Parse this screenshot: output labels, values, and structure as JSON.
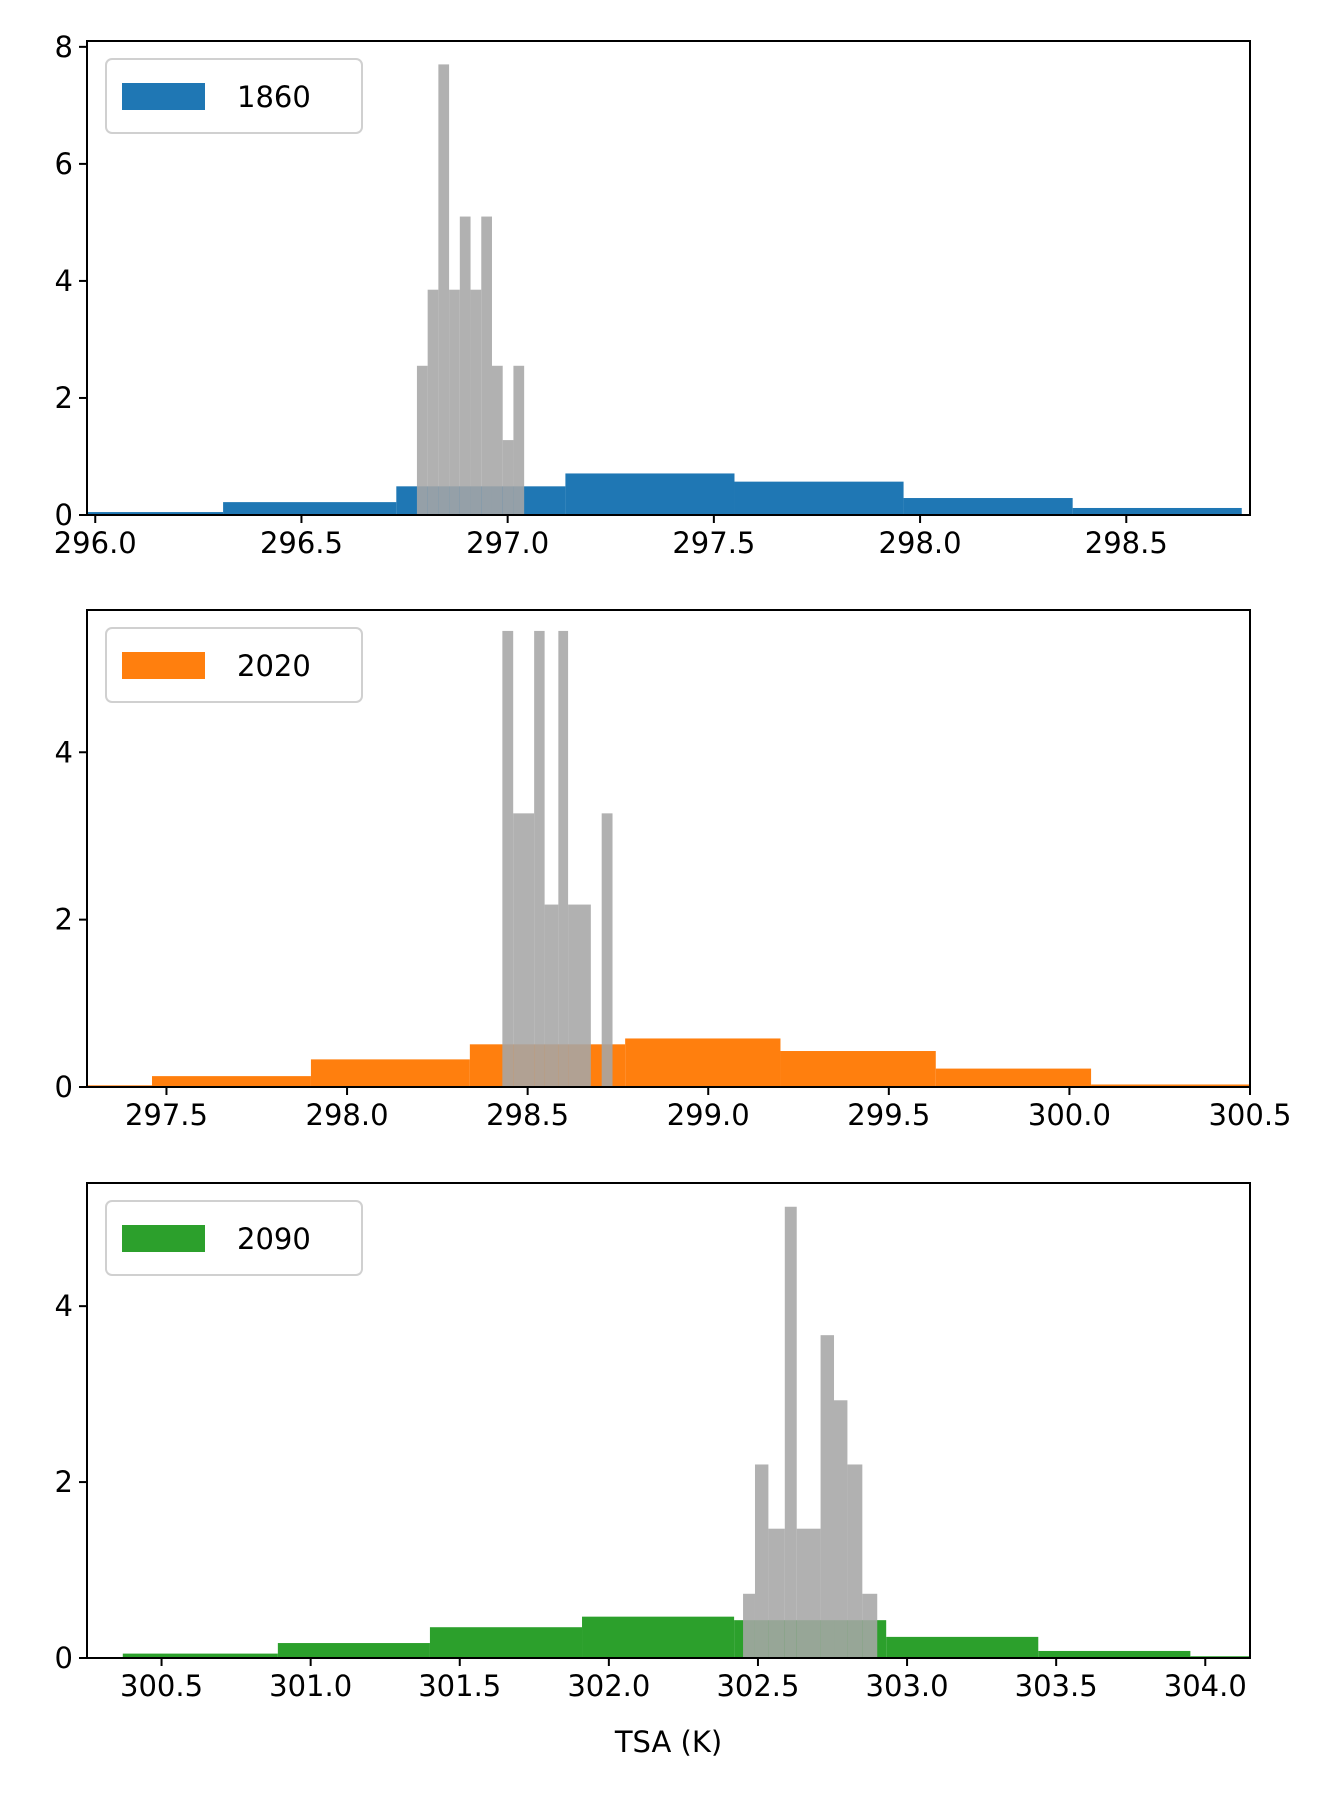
{
  "colors": {
    "gray_hist": "#a6a6a6",
    "series_1860": "#1f77b4",
    "series_2020": "#ff7f0e",
    "series_2090": "#2ca02c"
  },
  "chart_data": [
    {
      "type": "bar",
      "legend": {
        "label": "1860",
        "placement": "upper-left"
      },
      "xlabel": "",
      "ylabel": "",
      "xlim": [
        295.98,
        298.8
      ],
      "ylim": [
        0,
        8.1
      ],
      "xticks": [
        296.0,
        296.5,
        297.0,
        297.5,
        298.0,
        298.5
      ],
      "xtick_labels": [
        "296.0",
        "296.5",
        "297.0",
        "297.5",
        "298.0",
        "298.5"
      ],
      "yticks": [
        0,
        2,
        4,
        6,
        8
      ],
      "ytick_labels": [
        "0",
        "2",
        "4",
        "6",
        "8"
      ],
      "series": [
        {
          "name": "1860",
          "color": "#1f77b4",
          "alpha": 1.0,
          "bins": [
            {
              "x0": 295.89,
              "x1": 296.31,
              "value": 0.05
            },
            {
              "x0": 296.31,
              "x1": 296.73,
              "value": 0.22
            },
            {
              "x0": 296.73,
              "x1": 297.14,
              "value": 0.49
            },
            {
              "x0": 297.14,
              "x1": 297.55,
              "value": 0.71
            },
            {
              "x0": 297.55,
              "x1": 297.96,
              "value": 0.57
            },
            {
              "x0": 297.96,
              "x1": 298.37,
              "value": 0.29
            },
            {
              "x0": 298.37,
              "x1": 298.78,
              "value": 0.12
            }
          ]
        },
        {
          "color": "#a6a6a6",
          "alpha": 0.88,
          "bins": [
            {
              "x0": 296.78,
              "x1": 296.806,
              "value": 2.55
            },
            {
              "x0": 296.806,
              "x1": 296.832,
              "value": 3.85
            },
            {
              "x0": 296.832,
              "x1": 296.858,
              "value": 7.7
            },
            {
              "x0": 296.858,
              "x1": 296.884,
              "value": 3.85
            },
            {
              "x0": 296.884,
              "x1": 296.91,
              "value": 5.1
            },
            {
              "x0": 296.91,
              "x1": 296.936,
              "value": 3.85
            },
            {
              "x0": 296.936,
              "x1": 296.962,
              "value": 5.1
            },
            {
              "x0": 296.962,
              "x1": 296.988,
              "value": 2.55
            },
            {
              "x0": 296.988,
              "x1": 297.014,
              "value": 1.28
            },
            {
              "x0": 297.014,
              "x1": 297.04,
              "value": 2.55
            }
          ]
        }
      ]
    },
    {
      "type": "bar",
      "legend": {
        "label": "2020",
        "placement": "upper-left"
      },
      "xlabel": "",
      "ylabel": "",
      "xlim": [
        297.28,
        300.5
      ],
      "ylim": [
        0,
        5.7
      ],
      "xticks": [
        297.5,
        298.0,
        298.5,
        299.0,
        299.5,
        300.0,
        300.5
      ],
      "xtick_labels": [
        "297.5",
        "298.0",
        "298.5",
        "299.0",
        "299.5",
        "300.0",
        "300.5"
      ],
      "yticks": [
        0,
        2,
        4
      ],
      "ytick_labels": [
        "0",
        "2",
        "4"
      ],
      "series": [
        {
          "name": "2020",
          "color": "#ff7f0e",
          "alpha": 1.0,
          "bins": [
            {
              "x0": 297.0,
              "x1": 297.46,
              "value": 0.02
            },
            {
              "x0": 297.46,
              "x1": 297.9,
              "value": 0.13
            },
            {
              "x0": 297.9,
              "x1": 298.34,
              "value": 0.33
            },
            {
              "x0": 298.34,
              "x1": 298.77,
              "value": 0.51
            },
            {
              "x0": 298.77,
              "x1": 299.2,
              "value": 0.58
            },
            {
              "x0": 299.2,
              "x1": 299.63,
              "value": 0.43
            },
            {
              "x0": 299.63,
              "x1": 300.06,
              "value": 0.22
            },
            {
              "x0": 300.06,
              "x1": 300.5,
              "value": 0.03
            }
          ]
        },
        {
          "color": "#a6a6a6",
          "alpha": 0.88,
          "bins": [
            {
              "x0": 298.43,
              "x1": 298.46,
              "value": 5.45
            },
            {
              "x0": 298.46,
              "x1": 298.518,
              "value": 3.27
            },
            {
              "x0": 298.518,
              "x1": 298.547,
              "value": 5.45
            },
            {
              "x0": 298.547,
              "x1": 298.585,
              "value": 2.18
            },
            {
              "x0": 298.585,
              "x1": 298.612,
              "value": 5.45
            },
            {
              "x0": 298.612,
              "x1": 298.675,
              "value": 2.18
            },
            {
              "x0": 298.705,
              "x1": 298.735,
              "value": 3.27
            }
          ]
        }
      ]
    },
    {
      "type": "bar",
      "legend": {
        "label": "2090",
        "placement": "upper-left"
      },
      "xlabel": "TSA (K)",
      "ylabel": "",
      "xlim": [
        300.25,
        304.15
      ],
      "ylim": [
        0,
        5.4
      ],
      "xticks": [
        300.5,
        301.0,
        301.5,
        302.0,
        302.5,
        303.0,
        303.5,
        304.0
      ],
      "xtick_labels": [
        "300.5",
        "301.0",
        "301.5",
        "302.0",
        "302.5",
        "303.0",
        "303.5",
        "304.0"
      ],
      "yticks": [
        0,
        2,
        4
      ],
      "ytick_labels": [
        "0",
        "2",
        "4"
      ],
      "series": [
        {
          "name": "2090",
          "color": "#2ca02c",
          "alpha": 1.0,
          "bins": [
            {
              "x0": 300.37,
              "x1": 300.89,
              "value": 0.05
            },
            {
              "x0": 300.89,
              "x1": 301.4,
              "value": 0.17
            },
            {
              "x0": 301.4,
              "x1": 301.91,
              "value": 0.35
            },
            {
              "x0": 301.91,
              "x1": 302.42,
              "value": 0.47
            },
            {
              "x0": 302.42,
              "x1": 302.93,
              "value": 0.43
            },
            {
              "x0": 302.93,
              "x1": 303.44,
              "value": 0.24
            },
            {
              "x0": 303.44,
              "x1": 303.95,
              "value": 0.08
            },
            {
              "x0": 303.95,
              "x1": 304.46,
              "value": 0.02
            }
          ]
        },
        {
          "color": "#a6a6a6",
          "alpha": 0.88,
          "bins": [
            {
              "x0": 302.45,
              "x1": 302.49,
              "value": 0.73
            },
            {
              "x0": 302.49,
              "x1": 302.535,
              "value": 2.2
            },
            {
              "x0": 302.535,
              "x1": 302.59,
              "value": 1.47
            },
            {
              "x0": 302.59,
              "x1": 302.63,
              "value": 5.13
            },
            {
              "x0": 302.63,
              "x1": 302.71,
              "value": 1.47
            },
            {
              "x0": 302.71,
              "x1": 302.755,
              "value": 3.67
            },
            {
              "x0": 302.755,
              "x1": 302.8,
              "value": 2.93
            },
            {
              "x0": 302.8,
              "x1": 302.85,
              "value": 2.2
            },
            {
              "x0": 302.85,
              "x1": 302.9,
              "value": 0.73
            }
          ]
        }
      ]
    }
  ]
}
